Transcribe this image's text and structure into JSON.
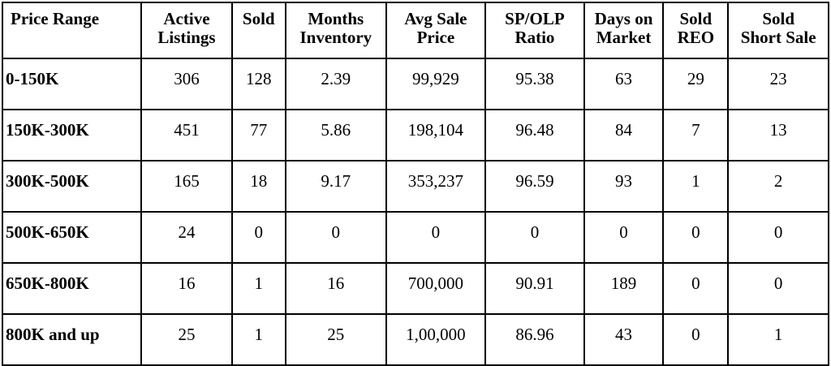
{
  "table": {
    "headers": {
      "price_range": "Price Range",
      "active_listings": [
        "Active",
        "Listings"
      ],
      "sold": "Sold",
      "months_inventory": [
        "Months",
        "Inventory"
      ],
      "avg_sale_price": "Avg Sale Price",
      "sp_olp_ratio": "SP/OLP Ratio",
      "days_on_market": [
        "Days on",
        "Market"
      ],
      "sold_reo": [
        "Sold",
        "REO"
      ],
      "sold_short_sale": [
        "Sold",
        "Short Sale"
      ]
    },
    "rows": [
      {
        "price_range": "0-150K",
        "active_listings": "306",
        "sold": "128",
        "months_inventory": "2.39",
        "avg_sale_price": "99,929",
        "sp_olp_ratio": "95.38",
        "days_on_market": "63",
        "sold_reo": "29",
        "sold_short_sale": "23"
      },
      {
        "price_range": "150K-300K",
        "active_listings": "451",
        "sold": "77",
        "months_inventory": "5.86",
        "avg_sale_price": "198,104",
        "sp_olp_ratio": "96.48",
        "days_on_market": "84",
        "sold_reo": "7",
        "sold_short_sale": "13"
      },
      {
        "price_range": "300K-500K",
        "active_listings": "165",
        "sold": "18",
        "months_inventory": "9.17",
        "avg_sale_price": "353,237",
        "sp_olp_ratio": "96.59",
        "days_on_market": "93",
        "sold_reo": "1",
        "sold_short_sale": "2"
      },
      {
        "price_range": "500K-650K",
        "active_listings": "24",
        "sold": "0",
        "months_inventory": "0",
        "avg_sale_price": "0",
        "sp_olp_ratio": "0",
        "days_on_market": "0",
        "sold_reo": "0",
        "sold_short_sale": "0"
      },
      {
        "price_range": "650K-800K",
        "active_listings": "16",
        "sold": "1",
        "months_inventory": "16",
        "avg_sale_price": "700,000",
        "sp_olp_ratio": "90.91",
        "days_on_market": "189",
        "sold_reo": "0",
        "sold_short_sale": "0"
      },
      {
        "price_range": "800K and up",
        "active_listings": "25",
        "sold": "1",
        "months_inventory": "25",
        "avg_sale_price": "1,00,000",
        "sp_olp_ratio": "86.96",
        "days_on_market": "43",
        "sold_reo": "0",
        "sold_short_sale": "1"
      }
    ]
  }
}
